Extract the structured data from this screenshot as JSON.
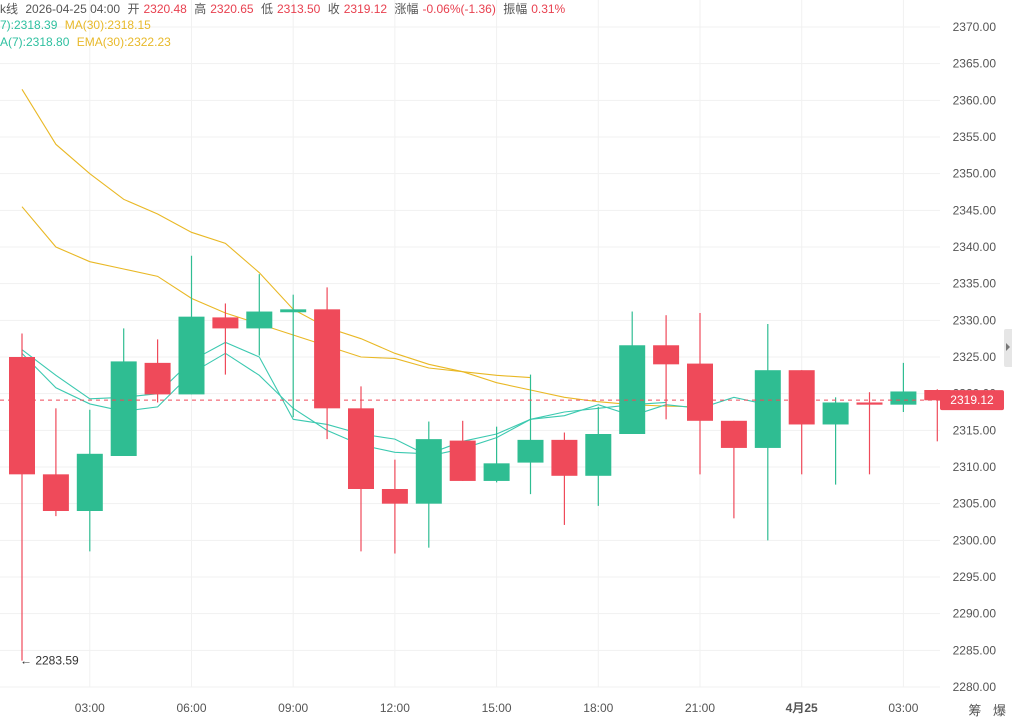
{
  "header": {
    "row1": {
      "name": "k线",
      "date": "2026-04-25 04:00",
      "open_label": "开",
      "open": "2320.48",
      "high_label": "高",
      "high": "2320.65",
      "low_label": "低",
      "low": "2313.50",
      "close_label": "收",
      "close": "2319.12",
      "change_label": "涨幅",
      "change": "-0.06%(-1.36)",
      "amp_label": "振幅",
      "amp": "0.31%"
    },
    "row2": {
      "ma7": "7):2318.39",
      "ma30": "MA(30):2318.15"
    },
    "row3": {
      "ema7": "A(7):2318.80",
      "ema30": "EMA(30):2322.23"
    }
  },
  "bottom_icons": {
    "a": "筹",
    "b": "爆"
  },
  "colors": {
    "up": "#2fbd92",
    "down": "#ef4a5a",
    "ma_short": "#3cc9b0",
    "ma_long": "#e9b825",
    "grid": "#f1f1f1",
    "axis_text": "#555555",
    "last_price_bg": "#ef4a5a"
  },
  "chart_data": {
    "type": "candlestick",
    "interval": "1h",
    "ylim": [
      2280,
      2370
    ],
    "y_ticks": [
      "2280.00",
      "2285.00",
      "2290.00",
      "2295.00",
      "2300.00",
      "2305.00",
      "2310.00",
      "2315.00",
      "2320.00",
      "2325.00",
      "2330.00",
      "2335.00",
      "2340.00",
      "2345.00",
      "2350.00",
      "2355.00",
      "2360.00",
      "2365.00",
      "2370.00"
    ],
    "x_ticks": [
      {
        "i": 2,
        "label": "03:00"
      },
      {
        "i": 5,
        "label": "06:00"
      },
      {
        "i": 8,
        "label": "09:00"
      },
      {
        "i": 11,
        "label": "12:00"
      },
      {
        "i": 14,
        "label": "15:00"
      },
      {
        "i": 17,
        "label": "18:00"
      },
      {
        "i": 20,
        "label": "21:00"
      },
      {
        "i": 23,
        "label": "4月25",
        "bold": true
      },
      {
        "i": 26,
        "label": "03:00"
      }
    ],
    "candles": [
      {
        "o": 2325.0,
        "h": 2328.2,
        "l": 2283.6,
        "c": 2309.0
      },
      {
        "o": 2309.0,
        "h": 2318.0,
        "l": 2303.3,
        "c": 2304.0
      },
      {
        "o": 2304.0,
        "h": 2317.8,
        "l": 2298.5,
        "c": 2311.8
      },
      {
        "o": 2311.5,
        "h": 2328.9,
        "l": 2311.5,
        "c": 2324.4
      },
      {
        "o": 2324.2,
        "h": 2327.4,
        "l": 2318.8,
        "c": 2319.9
      },
      {
        "o": 2319.9,
        "h": 2338.8,
        "l": 2319.9,
        "c": 2330.5
      },
      {
        "o": 2330.4,
        "h": 2332.3,
        "l": 2322.6,
        "c": 2328.9
      },
      {
        "o": 2328.9,
        "h": 2336.3,
        "l": 2325.2,
        "c": 2331.2
      },
      {
        "o": 2331.1,
        "h": 2333.5,
        "l": 2316.8,
        "c": 2331.5
      },
      {
        "o": 2331.5,
        "h": 2334.5,
        "l": 2313.8,
        "c": 2318.0
      },
      {
        "o": 2318.0,
        "h": 2321.0,
        "l": 2298.5,
        "c": 2307.0
      },
      {
        "o": 2307.0,
        "h": 2311.0,
        "l": 2298.2,
        "c": 2305.0
      },
      {
        "o": 2305.0,
        "h": 2316.2,
        "l": 2299.0,
        "c": 2313.8
      },
      {
        "o": 2313.6,
        "h": 2316.3,
        "l": 2308.1,
        "c": 2308.1
      },
      {
        "o": 2308.1,
        "h": 2315.5,
        "l": 2307.9,
        "c": 2310.5
      },
      {
        "o": 2310.6,
        "h": 2322.6,
        "l": 2306.3,
        "c": 2313.7
      },
      {
        "o": 2313.7,
        "h": 2314.7,
        "l": 2302.1,
        "c": 2308.8
      },
      {
        "o": 2308.8,
        "h": 2318.2,
        "l": 2304.7,
        "c": 2314.5
      },
      {
        "o": 2314.5,
        "h": 2331.2,
        "l": 2314.5,
        "c": 2326.6
      },
      {
        "o": 2326.6,
        "h": 2330.7,
        "l": 2316.5,
        "c": 2324.0
      },
      {
        "o": 2324.1,
        "h": 2331.0,
        "l": 2309.0,
        "c": 2316.3
      },
      {
        "o": 2316.3,
        "h": 2316.3,
        "l": 2303.0,
        "c": 2312.6
      },
      {
        "o": 2312.6,
        "h": 2329.5,
        "l": 2300.0,
        "c": 2323.2
      },
      {
        "o": 2323.2,
        "h": 2323.2,
        "l": 2309.0,
        "c": 2315.8
      },
      {
        "o": 2315.8,
        "h": 2319.5,
        "l": 2307.6,
        "c": 2318.8
      },
      {
        "o": 2318.8,
        "h": 2320.2,
        "l": 2309.0,
        "c": 2318.5
      },
      {
        "o": 2318.5,
        "h": 2324.2,
        "l": 2317.5,
        "c": 2320.3
      },
      {
        "o": 2320.5,
        "h": 2320.6,
        "l": 2313.5,
        "c": 2319.1
      }
    ],
    "ma_short": [
      2326.0,
      2322.5,
      2319.3,
      2319.5,
      2320.0,
      2324.5,
      2327.0,
      2325.0,
      2316.5,
      2315.8,
      2314.5,
      2313.8,
      2311.5,
      2312.5,
      2314.0,
      2316.5,
      2317.0,
      2318.5,
      2317.0,
      2318.5,
      2318.0,
      2319.5,
      2318.5
    ],
    "ma_short2": [
      2325.5,
      2320.8,
      2318.6,
      2317.6,
      2318.2,
      2322.8,
      2325.5,
      2322.5,
      2318.0,
      2315.0,
      2313.0,
      2312.0,
      2311.8,
      2313.5,
      2314.5,
      2316.5,
      2317.5,
      2318.0,
      2318.5,
      2318.8
    ],
    "ma_long": [
      2361.5,
      2354.0,
      2350.0,
      2346.5,
      2344.5,
      2342.0,
      2340.5,
      2336.5,
      2331.5,
      2329.0,
      2327.5,
      2325.5,
      2324.0,
      2323.0,
      2321.5,
      2320.5,
      2319.5,
      2318.9,
      2318.5,
      2318.3,
      2318.2
    ],
    "ema_long": [
      2345.5,
      2340.0,
      2338.0,
      2337.0,
      2336.0,
      2333.0,
      2331.0,
      2329.5,
      2328.0,
      2326.5,
      2325.0,
      2324.8,
      2323.5,
      2323.0,
      2322.5,
      2322.2
    ],
    "last_price": "2319.12",
    "last_price_value": 2319.12,
    "low_marker": {
      "i": 0,
      "label": "← 2283.59"
    }
  }
}
